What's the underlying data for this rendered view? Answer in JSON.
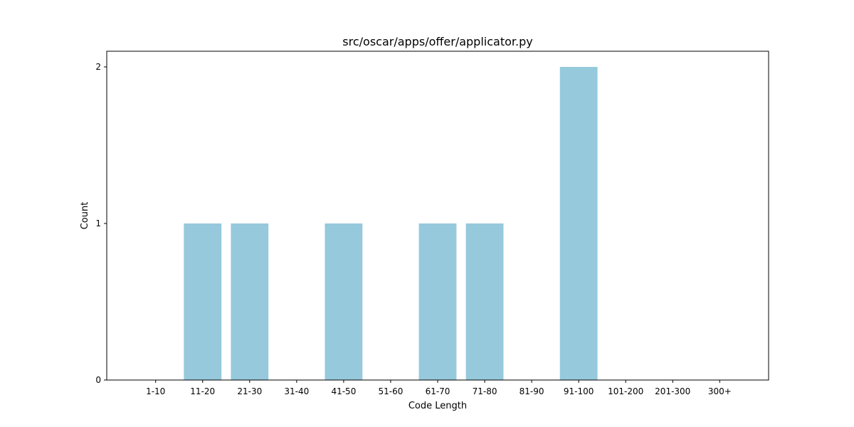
{
  "chart_data": {
    "type": "bar",
    "title": "src/oscar/apps/offer/applicator.py",
    "xlabel": "Code Length",
    "ylabel": "Count",
    "categories": [
      "1-10",
      "11-20",
      "21-30",
      "31-40",
      "41-50",
      "51-60",
      "61-70",
      "71-80",
      "81-90",
      "91-100",
      "101-200",
      "201-300",
      "300+"
    ],
    "values": [
      0,
      1,
      1,
      0,
      1,
      0,
      1,
      1,
      0,
      2,
      0,
      0,
      0
    ],
    "yticks": [
      0,
      1,
      2
    ],
    "ylim": [
      0,
      2.1
    ],
    "bar_color": "#96c9dc",
    "grid": false,
    "legend": "none"
  }
}
